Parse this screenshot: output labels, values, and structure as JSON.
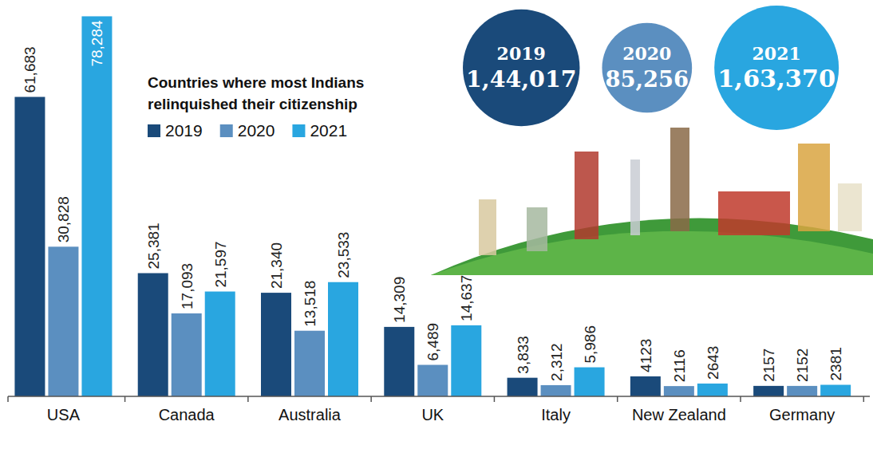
{
  "chart_data": {
    "type": "bar",
    "title": "Countries where most Indians relinquished their citizenship",
    "categories": [
      "USA",
      "Canada",
      "Australia",
      "UK",
      "Italy",
      "New Zealand",
      "Germany"
    ],
    "series": [
      {
        "name": "2019",
        "color": "#1a4a7a",
        "values": [
          61683,
          25381,
          21340,
          14309,
          3833,
          4123,
          2157
        ],
        "value_labels": [
          "61,683",
          "25,381",
          "21,340",
          "14,309",
          "3,833",
          "4123",
          "2157"
        ]
      },
      {
        "name": "2020",
        "color": "#5b8fc0",
        "values": [
          30828,
          17093,
          13518,
          6489,
          2312,
          2116,
          2152
        ],
        "value_labels": [
          "30,828",
          "17,093",
          "13,518",
          "6,489",
          "2,312",
          "2116",
          "2152"
        ]
      },
      {
        "name": "2021",
        "color": "#29a6e0",
        "values": [
          78284,
          21597,
          23533,
          14637,
          5986,
          2643,
          2381
        ],
        "value_labels": [
          "78,284",
          "21,597",
          "23,533",
          "14,637",
          "5,986",
          "2643",
          "2381"
        ]
      }
    ],
    "ylim": [
      0,
      80000
    ],
    "tick_labels": "x",
    "data_labels": true,
    "legend": "top",
    "totals": [
      {
        "label": "2019",
        "value": 144017,
        "value_label": "1,44,017",
        "color": "#1a4a7a"
      },
      {
        "label": "2020",
        "value": 85256,
        "value_label": "85,256",
        "color": "#5b8fc0"
      },
      {
        "label": "2021",
        "value": 163370,
        "value_label": "1,63,370",
        "color": "#29a6e0"
      }
    ]
  }
}
